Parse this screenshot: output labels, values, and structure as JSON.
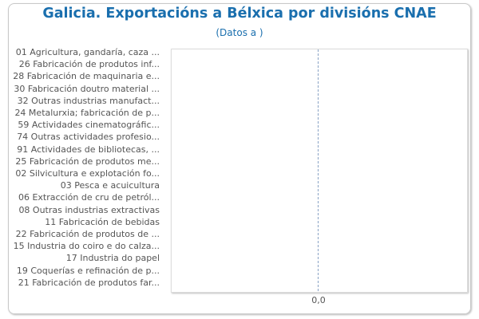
{
  "chart_data": {
    "type": "bar",
    "orientation": "horizontal",
    "title": "Galicia. Exportacións a Bélxica por divisións CNAE",
    "subtitle": "(Datos a )",
    "categories": [
      "01 Agricultura, gandaría, caza ...",
      "26 Fabricación de produtos inf...",
      "28 Fabricación de maquinaria e...",
      "30 Fabricación doutro material ...",
      "32 Outras industrias manufact...",
      "24 Metalurxia; fabricación de p...",
      "59 Actividades cinematográfic...",
      "74 Outras actividades profesio...",
      "91 Actividades de bibliotecas, ...",
      "25 Fabricación de produtos me...",
      "02 Silvicultura e explotación fo...",
      "03 Pesca e acuicultura",
      "06 Extracción de cru de petról...",
      "08 Outras industrias extractivas",
      "11 Fabricación de bebidas",
      "22 Fabricación de produtos de ...",
      "15 Industria do coiro e do calza...",
      "17 Industria do papel",
      "19 Coquerías e refinación de p...",
      "21 Fabricación de produtos far..."
    ],
    "values": [
      0,
      0,
      0,
      0,
      0,
      0,
      0,
      0,
      0,
      0,
      0,
      0,
      0,
      0,
      0,
      0,
      0,
      0,
      0,
      0
    ],
    "x_ticks": [
      "0,0"
    ],
    "xlabel": "",
    "ylabel": "",
    "grid": false,
    "bar_color": "#1a6fae"
  }
}
